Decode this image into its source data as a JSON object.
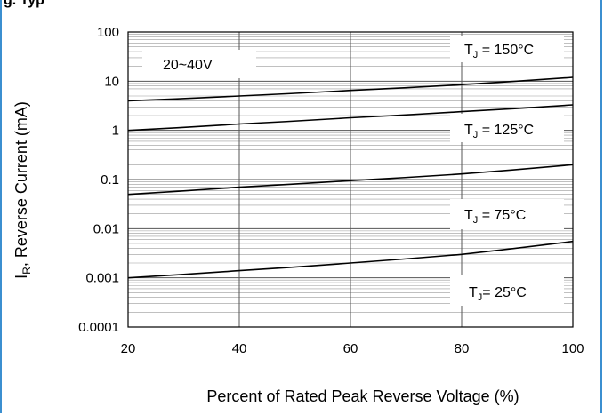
{
  "page": {
    "header_fragment": "g. Typ"
  },
  "chart_data": {
    "type": "line",
    "title": "",
    "xlabel": "Percent of Rated Peak Reverse Voltage (%)",
    "ylabel_main": "I",
    "ylabel_sub": "R",
    "ylabel_rest": ", Reverse Current (mA)",
    "xscale": "linear",
    "yscale": "log",
    "xlim": [
      20,
      100
    ],
    "ylim": [
      0.0001,
      100
    ],
    "grid": true,
    "x_ticks": [
      20,
      40,
      60,
      80,
      100
    ],
    "x_tick_labels": [
      "20",
      "40",
      "60",
      "80",
      "100"
    ],
    "y_ticks": [
      0.0001,
      0.001,
      0.01,
      0.1,
      1,
      10,
      100
    ],
    "y_tick_labels": [
      "0.0001",
      "0.001",
      "0.01",
      "0.1",
      "1",
      "10",
      "100"
    ],
    "range_label": "20~40V",
    "line_color": "#000000",
    "series": [
      {
        "label_main": "T",
        "label_sub": "J",
        "label_rest": " = 150°C",
        "x": [
          20,
          40,
          60,
          80,
          100
        ],
        "y": [
          4.0,
          5.0,
          6.5,
          8.5,
          12.0
        ]
      },
      {
        "label_main": "T",
        "label_sub": "J",
        "label_rest": " = 125°C",
        "x": [
          20,
          40,
          60,
          80,
          100
        ],
        "y": [
          1.0,
          1.35,
          1.8,
          2.4,
          3.3
        ]
      },
      {
        "label_main": "T",
        "label_sub": "J",
        "label_rest": " = 75°C",
        "x": [
          20,
          40,
          60,
          80,
          100
        ],
        "y": [
          0.05,
          0.07,
          0.095,
          0.13,
          0.2
        ]
      },
      {
        "label_main": "T",
        "label_sub": "J",
        "label_rest": "= 25°C",
        "x": [
          20,
          40,
          60,
          80,
          100
        ],
        "y": [
          0.001,
          0.0014,
          0.002,
          0.003,
          0.0055
        ]
      }
    ]
  }
}
